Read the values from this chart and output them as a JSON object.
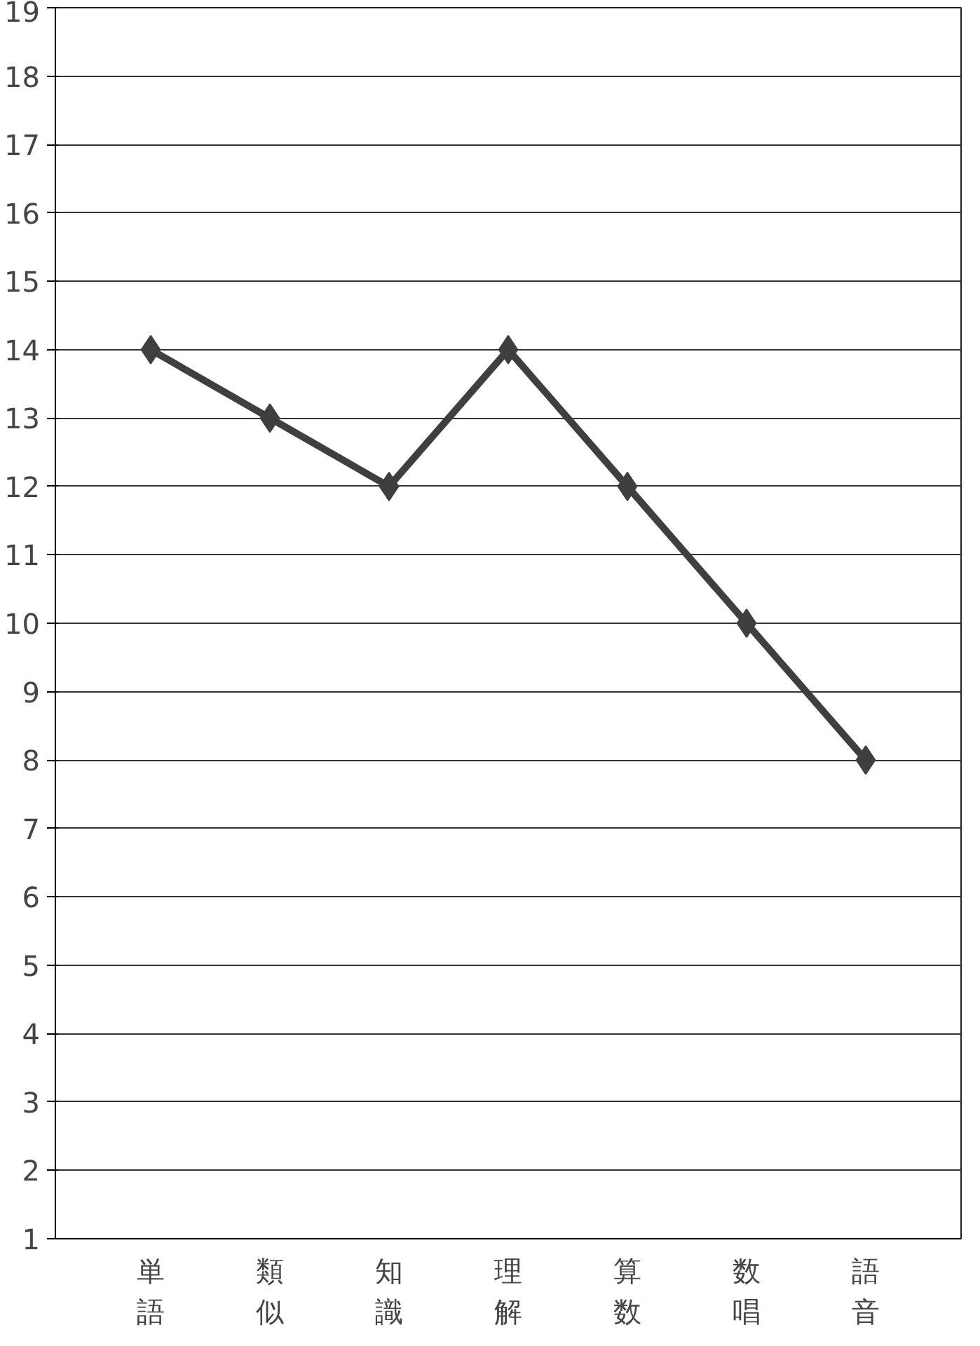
{
  "chart_data": {
    "type": "line",
    "categories": [
      "単語",
      "類似",
      "知識",
      "理解",
      "算数",
      "数唱",
      "語音"
    ],
    "series": [
      {
        "color": "#3f3f3f",
        "values": [
          14,
          13,
          12,
          14,
          12,
          10,
          8
        ]
      }
    ],
    "ylim": [
      1,
      19
    ],
    "yticks": [
      1,
      2,
      3,
      4,
      5,
      6,
      7,
      8,
      9,
      10,
      11,
      12,
      13,
      14,
      15,
      16,
      17,
      18,
      19
    ],
    "grid": "y",
    "marker": "diamond",
    "line_style": "solid"
  }
}
